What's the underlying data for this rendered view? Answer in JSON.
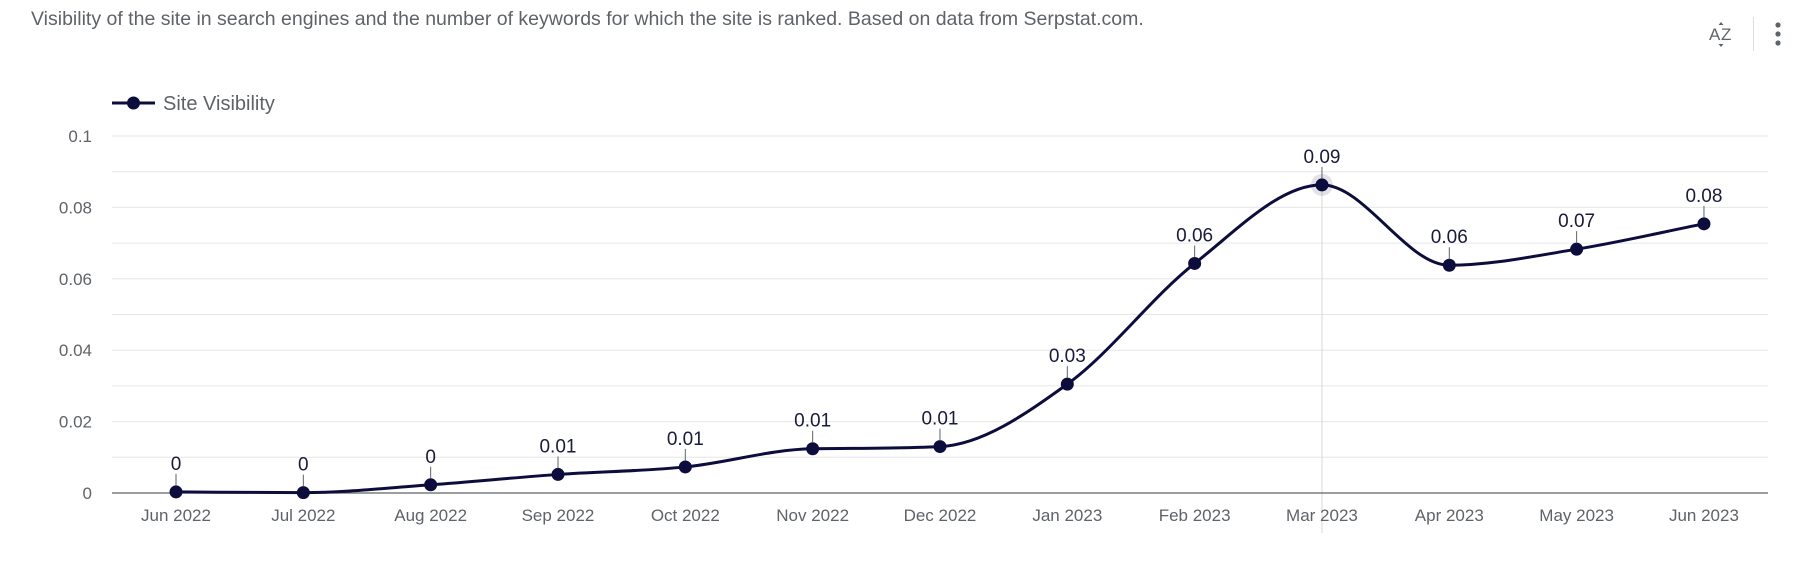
{
  "header": {
    "description": "Visibility of the site in search engines and the number of keywords for which the site is ranked. Based on data from Serpstat.com.",
    "sort_icon": "sort-az-icon",
    "more_icon": "more-vert-icon"
  },
  "colors": {
    "series": "#0d0d3d",
    "grid": "#e6e6e6",
    "axis": "#5f6368",
    "crosshair": "#d9d9d9"
  },
  "chart_data": {
    "type": "line",
    "title": "",
    "xlabel": "",
    "ylabel": "",
    "categories": [
      "Jun 2022",
      "Jul 2022",
      "Aug 2022",
      "Sep 2022",
      "Oct 2022",
      "Nov 2022",
      "Dec 2022",
      "Jan 2023",
      "Feb 2023",
      "Mar 2023",
      "Apr 2023",
      "May 2023",
      "Jun 2023"
    ],
    "series": [
      {
        "name": "Site Visibility",
        "values": [
          0.0003,
          0.0001,
          0.0023,
          0.0052,
          0.0073,
          0.0124,
          0.013,
          0.0305,
          0.0643,
          0.0863,
          0.0638,
          0.0683,
          0.0754
        ],
        "labels": [
          "0",
          "0",
          "0",
          "0.01",
          "0.01",
          "0.01",
          "0.01",
          "0.03",
          "0.06",
          "0.09",
          "0.06",
          "0.07",
          "0.08"
        ]
      }
    ],
    "ylim": [
      0,
      0.1
    ],
    "y_ticks": [
      0,
      0.02,
      0.04,
      0.06,
      0.08,
      0.1
    ],
    "y_tick_labels": [
      "0",
      "0.02",
      "0.04",
      "0.06",
      "0.08",
      "0.1"
    ],
    "grid": true,
    "legend": "top-left",
    "highlighted_category": "Mar 2023"
  }
}
